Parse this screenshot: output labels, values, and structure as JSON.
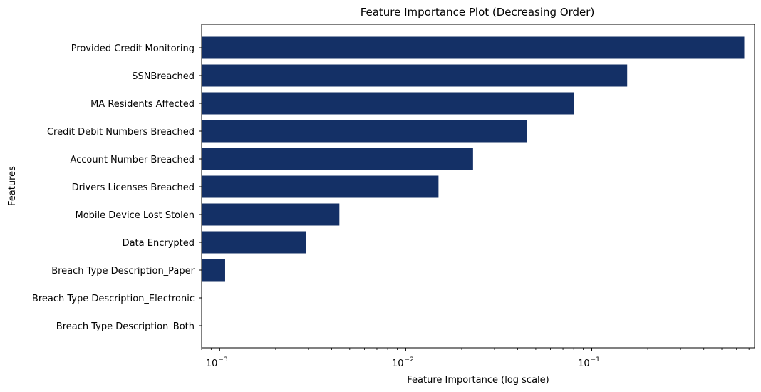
{
  "chart_data": {
    "type": "bar",
    "orientation": "horizontal",
    "title": "Feature Importance Plot (Decreasing Order)",
    "xlabel": "Feature Importance (log scale)",
    "ylabel": "Features",
    "xscale": "log",
    "xlim": [
      0.0008,
      0.75
    ],
    "bar_color": "#143066",
    "categories": [
      "Provided Credit Monitoring",
      "SSNBreached",
      "MA Residents Affected",
      "Credit Debit Numbers Breached",
      "Account Number Breached",
      "Drivers Licenses Breached",
      "Mobile Device Lost Stolen",
      "Data Encrypted",
      "Breach Type Description_Paper",
      "Breach Type Description_Electronic",
      "Breach Type Description_Both"
    ],
    "values": [
      0.66,
      0.155,
      0.08,
      0.045,
      0.023,
      0.015,
      0.0044,
      0.0029,
      0.00107,
      0,
      0
    ],
    "x_major_ticks": [
      {
        "value": 0.001,
        "base": "10",
        "exp": "−3"
      },
      {
        "value": 0.01,
        "base": "10",
        "exp": "−2"
      },
      {
        "value": 0.1,
        "base": "10",
        "exp": "−1"
      }
    ],
    "grid": false
  }
}
